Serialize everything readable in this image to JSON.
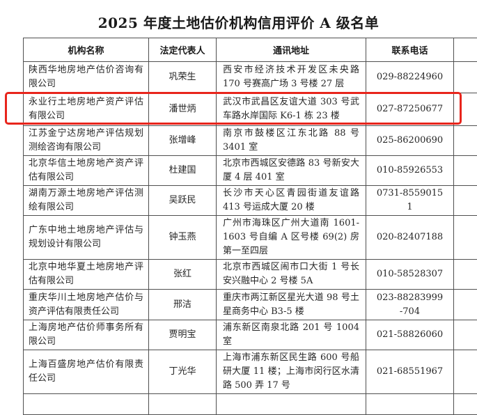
{
  "title": "2025 年度土地估价机构信用评价 A 级名单",
  "table": {
    "headers": [
      "机构名称",
      "法定代表人",
      "通讯地址",
      "联系电话"
    ],
    "rows": [
      {
        "name": "陕西华地房地产估价咨询有限公司",
        "representative": "巩荣生",
        "address": "西安市经济技术开发区未央路 170 号赛高广场 3 号楼 27 层",
        "phone": "029-88224960"
      },
      {
        "name": "永业行土地房地产资产评估有限公司",
        "representative": "潘世炳",
        "address": "武汉市武昌区友谊大道 303 号武车路水岸国际 K6-1 栋 23 楼",
        "phone": "027-87250677"
      },
      {
        "name": "江苏金宁达房地产评估规划测绘咨询有限公司",
        "representative": "张增峰",
        "address": "南京市鼓楼区江东北路 88 号 3401 室",
        "phone": "025-86200690"
      },
      {
        "name": "北京华信土地房地产资产评估有限公司",
        "representative": "杜建国",
        "address": "北京市西城区安德路 83 号新安大厦 4 层 401 室",
        "phone": "010-85926553"
      },
      {
        "name": "湖南万源土地房地产评估测绘有限公司",
        "representative": "吴跃民",
        "address": "长沙市天心区青园街道友谊路 413 号运成大厦 20 楼",
        "phone": "0731-85590151"
      },
      {
        "name": "广东中地土地房地产评估与规划设计有限公司",
        "representative": "钟玉燕",
        "address": "广州市海珠区广州大道南 1601-1603 号自编 A 区号楼 69(2) 房第一至四层",
        "phone": "020-82407188"
      },
      {
        "name": "北京中地华夏土地房地产评估有限公司",
        "representative": "张红",
        "address": "北京市西城区闹市口大街 1 号长安兴融中心 2 号楼 5A",
        "phone": "010-58528307"
      },
      {
        "name": "重庆华川土地房地产估价与资产评估有限责任公司",
        "representative": "邢洁",
        "address": "重庆市两江新区星光大道 98 号土星商务中心 B3-5 楼",
        "phone": "023-88283999-704"
      },
      {
        "name": "上海房地产估价师事务所有限公司",
        "representative": "贾明宝",
        "address": "浦东新区南泉北路 201 号 1004 室",
        "phone": "021-58826060"
      },
      {
        "name": "上海百盛房地产估价有限责任公司",
        "representative": "丁光华",
        "address": "上海市浦东新区民生路 600 号船研大厦 11 楼；上海市闵行区水清路 500 弄 17 号",
        "phone": "021-68551967"
      }
    ]
  },
  "highlight": {
    "highlighted_row_name": "永业行土地房地产资产评估有限公司",
    "row_index": 1,
    "color": "#e8251c"
  },
  "colors": {
    "border": "#4f4f4f",
    "text": "#262626",
    "background": "#ffffff"
  }
}
